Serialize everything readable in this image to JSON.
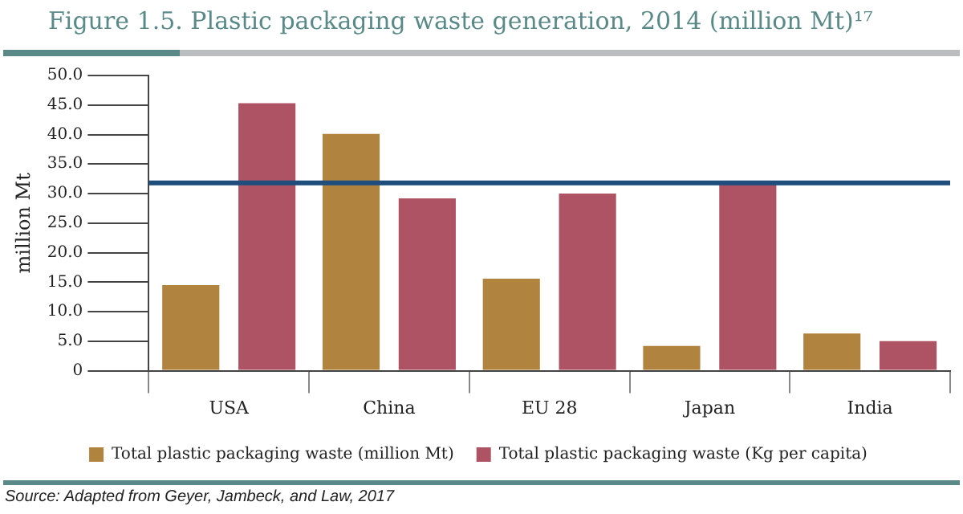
{
  "chart_data": {
    "type": "bar",
    "title": "Figure 1.5. Plastic packaging waste generation, 2014 (million Mt)¹⁷",
    "ylabel": "million Mt",
    "categories": [
      "USA",
      "China",
      "EU 28",
      "Japan",
      "India"
    ],
    "series": [
      {
        "name": "Total plastic packaging waste (million Mt)",
        "color": "#b0843f",
        "values": [
          14.5,
          40.1,
          15.6,
          4.2,
          6.3
        ]
      },
      {
        "name": "Total plastic packaging waste (Kg per capita)",
        "color": "#ad5363",
        "values": [
          45.3,
          29.2,
          30.0,
          31.9,
          5.0
        ]
      }
    ],
    "ylim": [
      0,
      50
    ],
    "yticks": [
      {
        "value": 0,
        "label": "0"
      },
      {
        "value": 5,
        "label": "5.0"
      },
      {
        "value": 10,
        "label": "10.0"
      },
      {
        "value": 15,
        "label": "15.0"
      },
      {
        "value": 20,
        "label": "20.0"
      },
      {
        "value": 25,
        "label": "25.0"
      },
      {
        "value": 30,
        "label": "30.0"
      },
      {
        "value": 35,
        "label": "35.0"
      },
      {
        "value": 40,
        "label": "40.0"
      },
      {
        "value": 45,
        "label": "45.0"
      },
      {
        "value": 50,
        "label": "50.0"
      }
    ],
    "grid": false,
    "legend": "bottom",
    "ref_lines": [
      {
        "axis": "y",
        "value": 31.8,
        "color": "#1f4e7d"
      }
    ],
    "annotations": [
      "Source:  Adapted from Geyer, Jambeck, and Law, 2017"
    ]
  }
}
